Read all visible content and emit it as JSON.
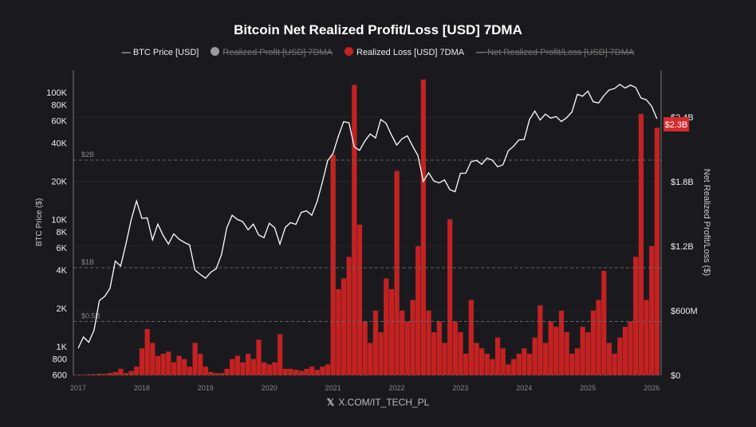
{
  "chart_data": {
    "type": "bar+line",
    "title": "Bitcoin Net Realized Profit/Loss [USD] 7DMA",
    "legend": [
      {
        "label": "BTC Price [USD]",
        "color": "#ffffff",
        "active": true
      },
      {
        "label": "Realized Profit [USD] 7DMA",
        "color": "#9a9aa2",
        "active": false
      },
      {
        "label": "Realized Loss [USD] 7DMA",
        "color": "#d42a2a",
        "active": true
      },
      {
        "label": "Net Realized Profit/Loss [USD] 7DMA",
        "color": "#888888",
        "active": false
      }
    ],
    "legend_position": "top",
    "left_axis": {
      "label": "BTC Price ($)",
      "scale": "log",
      "ylim": [
        600,
        135000
      ],
      "ticks": [
        600,
        800,
        1000,
        2000,
        4000,
        6000,
        8000,
        10000,
        20000,
        40000,
        60000,
        80000,
        100000
      ],
      "tick_labels": [
        "600",
        "800",
        "1K",
        "2K",
        "4K",
        "6K",
        "8K",
        "10K",
        "20K",
        "40K",
        "60K",
        "80K",
        "100K"
      ]
    },
    "right_axis": {
      "label": "Net Realized Profit/Loss ($)",
      "ylim": [
        0,
        2400
      ],
      "ticks": [
        0,
        600,
        1200,
        1800,
        2400
      ],
      "tick_labels": [
        "$0",
        "$600M",
        "$1.2B",
        "$1.8B",
        "$2.4B"
      ]
    },
    "x_ticks": [
      "2017",
      "2018",
      "2019",
      "2020",
      "2021",
      "2022",
      "2023",
      "2024",
      "2025",
      "2026"
    ],
    "reference_lines": [
      {
        "label": "$2B",
        "value": 2000
      },
      {
        "label": "$1B",
        "value": 1000
      },
      {
        "label": "$0.5B",
        "value": 500
      }
    ],
    "last_value_tag": {
      "label": "$2.3B",
      "color": "#d42a2a"
    },
    "x_start": "2017-01",
    "x_step": "month",
    "btc_price": [
      970,
      1190,
      1080,
      1350,
      2300,
      2480,
      2870,
      4700,
      4300,
      6400,
      10000,
      14000,
      10200,
      10300,
      6900,
      9200,
      7500,
      6400,
      7700,
      7000,
      6600,
      6300,
      4000,
      3700,
      3450,
      3850,
      4100,
      5300,
      8600,
      10800,
      10000,
      9600,
      8300,
      9200,
      7550,
      7200,
      9350,
      8600,
      6400,
      8650,
      9450,
      9150,
      11350,
      11700,
      10800,
      13800,
      19700,
      29000,
      33100,
      45200,
      58900,
      57700,
      37300,
      35000,
      41500,
      47100,
      43800,
      61300,
      57000,
      46300,
      38500,
      43200,
      45500,
      37700,
      31800,
      19900,
      23300,
      20050,
      19400,
      20500,
      17150,
      16550,
      23100,
      23150,
      28500,
      29250,
      27200,
      30450,
      29250,
      25950,
      26950,
      34650,
      37700,
      42300,
      42600,
      61200,
      71300,
      60600,
      67500,
      62700,
      64600,
      59000,
      63300,
      70200,
      96400,
      93400,
      102400,
      84300,
      82500,
      94200,
      104600,
      107100,
      115700,
      108200,
      114000,
      109500,
      90400,
      87500,
      78000,
      62000
    ],
    "realized_loss_musd": [
      5,
      5,
      8,
      10,
      15,
      12,
      20,
      30,
      60,
      20,
      40,
      80,
      250,
      430,
      300,
      180,
      200,
      220,
      120,
      180,
      150,
      80,
      300,
      200,
      80,
      30,
      20,
      20,
      60,
      150,
      180,
      120,
      200,
      150,
      330,
      120,
      100,
      120,
      380,
      60,
      60,
      50,
      40,
      60,
      80,
      50,
      80,
      100,
      2050,
      800,
      900,
      1100,
      2700,
      1400,
      500,
      300,
      600,
      400,
      900,
      800,
      1900,
      600,
      500,
      700,
      1200,
      2750,
      600,
      400,
      500,
      300,
      1450,
      500,
      400,
      200,
      700,
      300,
      250,
      200,
      150,
      350,
      250,
      100,
      150,
      200,
      250,
      200,
      350,
      650,
      300,
      500,
      450,
      600,
      400,
      200,
      250,
      450,
      400,
      600,
      700,
      970,
      300,
      200,
      350,
      450,
      500,
      1100,
      2430,
      700,
      1200,
      2300
    ]
  },
  "watermark": "X.COM/IT_TECH_PL"
}
